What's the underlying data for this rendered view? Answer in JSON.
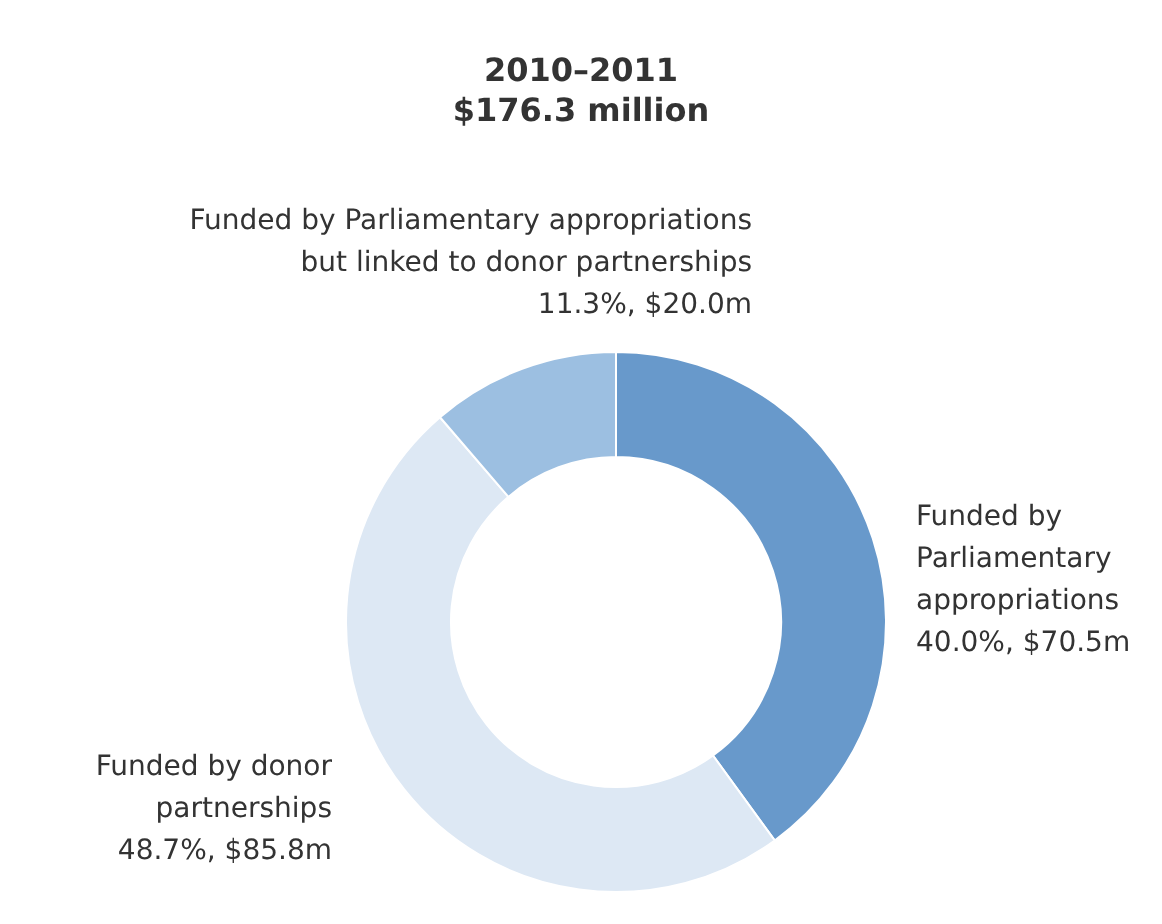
{
  "chart_data": {
    "type": "donut",
    "title": "2010–2011",
    "subtitle": "$176.3 million",
    "categories": [
      "Funded by\nParliamentary\nappropriations",
      "Funded by donor\npartnerships",
      "Funded by Parliamentary appropriations\nbut linked to donor partnerships"
    ],
    "values": [
      40.0,
      48.7,
      11.3
    ],
    "colors": [
      "#6899cb",
      "#dde8f4",
      "#9cbfe1"
    ],
    "value_labels": [
      "40.0%, $70.5m",
      "48.7%, $85.8m",
      "11.3%, $20.0m"
    ],
    "legend": false
  }
}
